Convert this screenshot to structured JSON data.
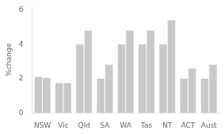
{
  "chart_data": {
    "type": "bar",
    "ylabel": "%change",
    "categories": [
      "NSW",
      "Vic",
      "Qld",
      "SA",
      "WA",
      "Tas",
      "NT",
      "ACT",
      "Aust"
    ],
    "series": [
      {
        "color": "#c9c9c9",
        "values": [
          2.1,
          1.75,
          4.0,
          2.0,
          4.0,
          4.0,
          4.0,
          2.0,
          2.0
        ]
      },
      {
        "color": "#c9c9c9",
        "values": [
          2.05,
          1.75,
          4.8,
          2.8,
          4.8,
          4.8,
          5.4,
          2.6,
          2.8
        ]
      }
    ],
    "ylim": [
      0,
      6.2
    ],
    "yticks": [
      0,
      2,
      4,
      6
    ],
    "grid": false
  }
}
